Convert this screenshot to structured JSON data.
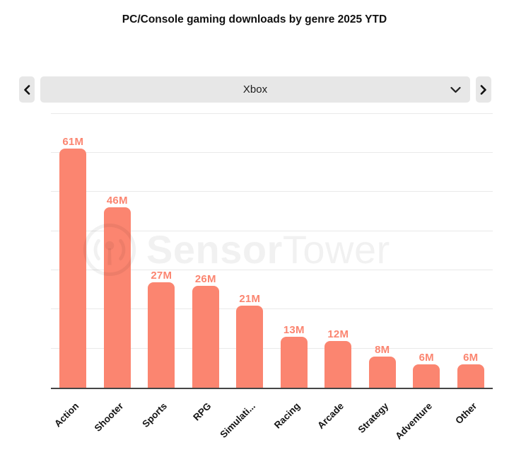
{
  "header": {
    "title": "PC/Console gaming downloads by genre 2025 YTD"
  },
  "carousel": {
    "selected_option": "Xbox"
  },
  "watermark": {
    "brand_bold": "Sensor",
    "brand_light": "Tower"
  },
  "colors": {
    "bar": "#FB8570",
    "value_label": "#FB8570",
    "gridline": "#e9e9e9",
    "axis_line": "#454545",
    "control_background": "#e7e7e7"
  },
  "chart_data": {
    "type": "bar",
    "title": "PC/Console gaming downloads by genre 2025 YTD",
    "categories": [
      "Action",
      "Shooter",
      "Sports",
      "RPG",
      "Simulati...",
      "Racing",
      "Arcade",
      "Strategy",
      "Adventure",
      "Other"
    ],
    "values": [
      61,
      46,
      27,
      26,
      21,
      13,
      12,
      8,
      6,
      6
    ],
    "data_labels": [
      "61M",
      "46M",
      "27M",
      "26M",
      "21M",
      "13M",
      "12M",
      "8M",
      "6M",
      "6M"
    ],
    "unit": "M downloads",
    "xlabel": "",
    "ylabel": "",
    "ylim": [
      0,
      71
    ],
    "gridline_step": 10,
    "grid": true,
    "legend": "none",
    "bar_color": "#FB8570"
  }
}
